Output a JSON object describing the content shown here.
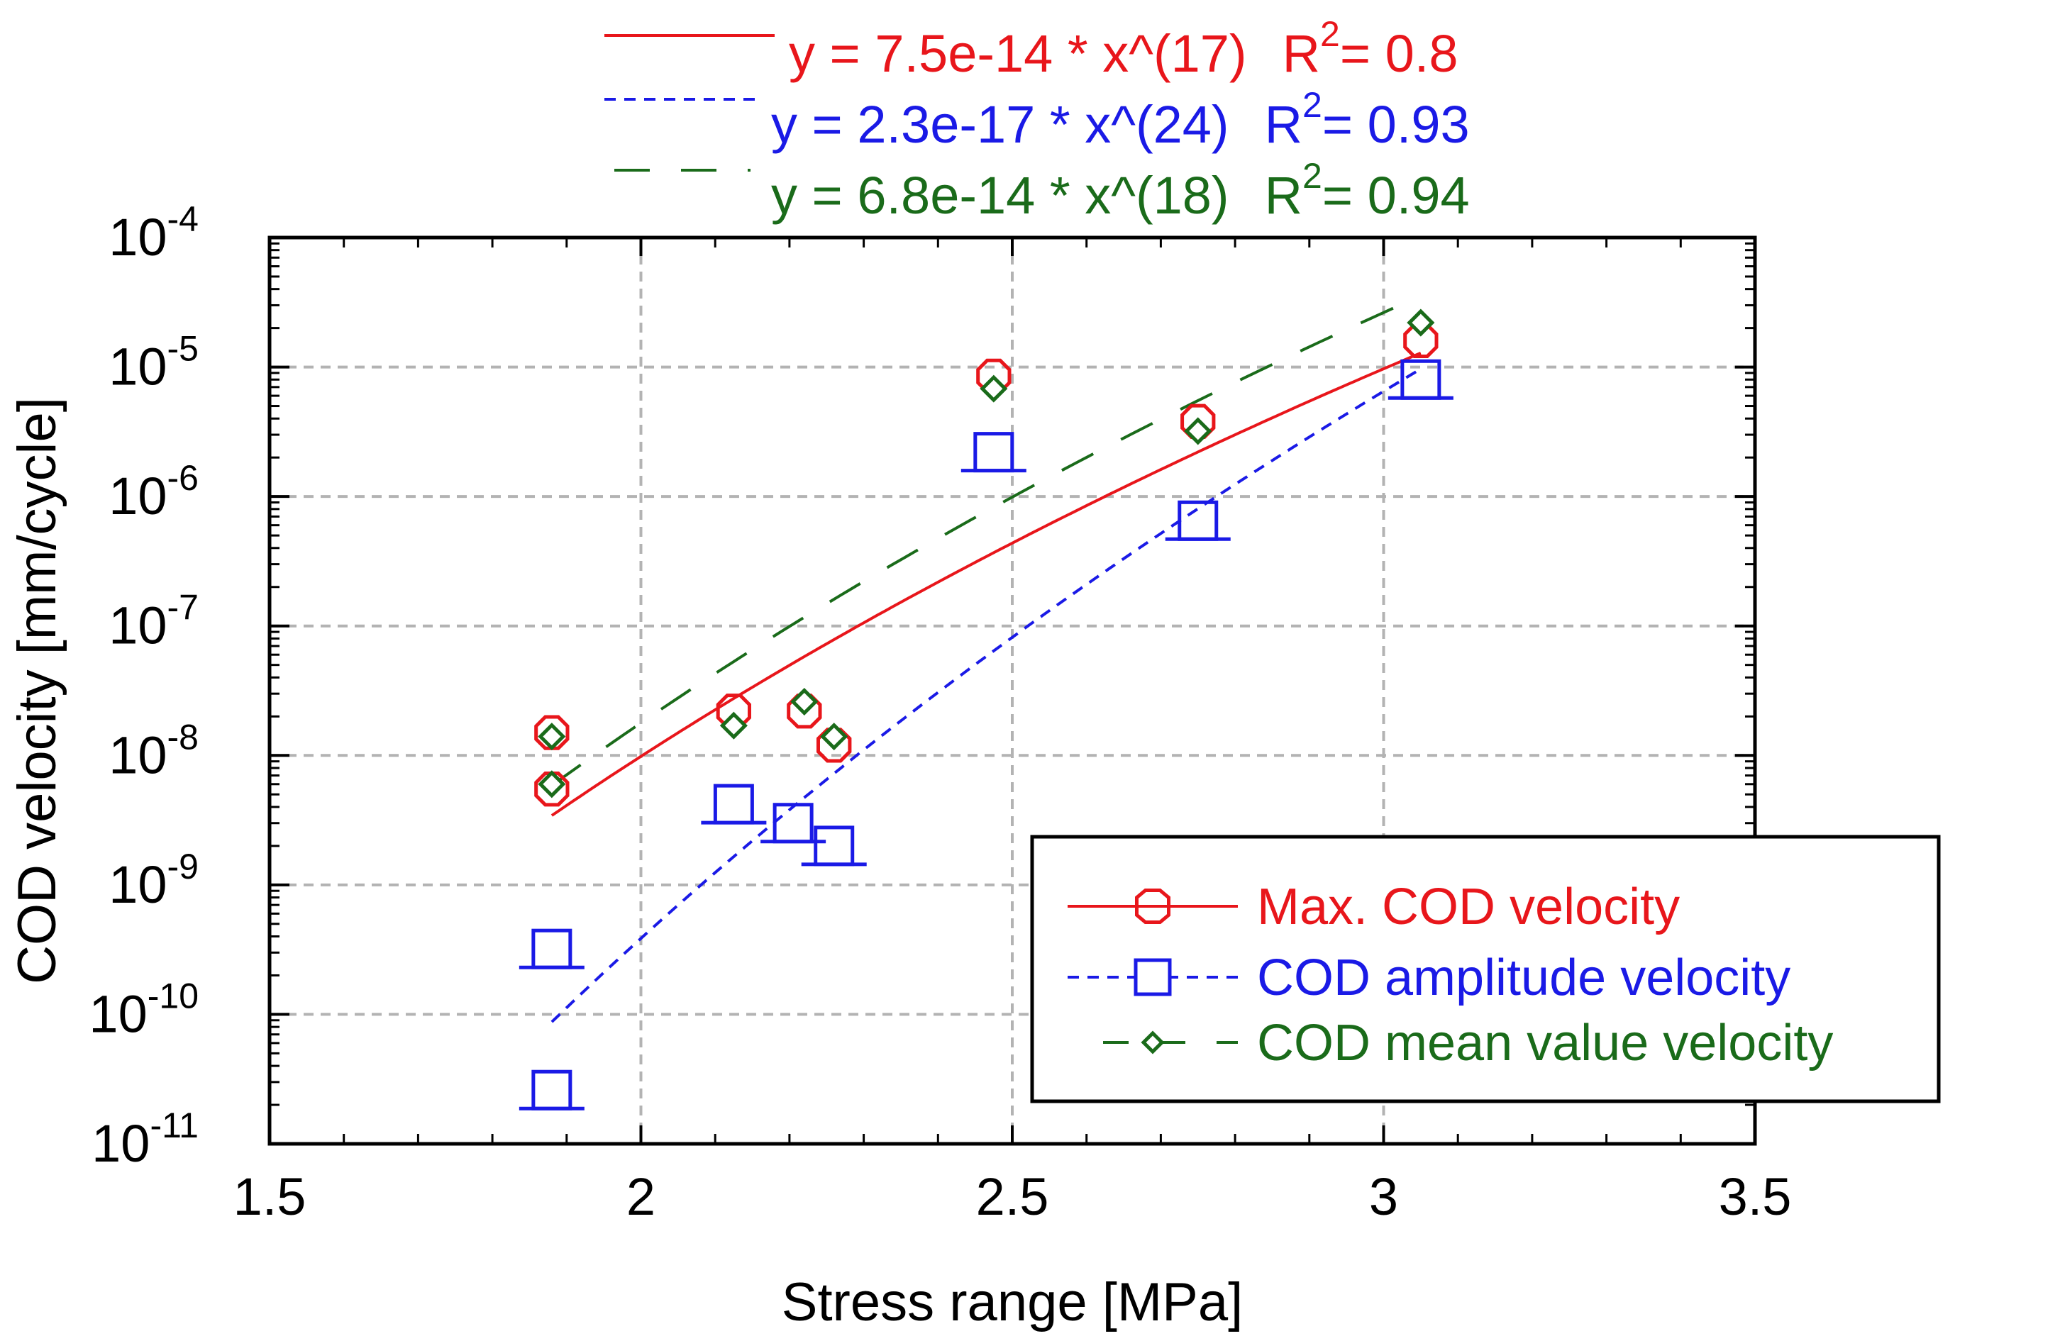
{
  "chart_data": {
    "type": "scatter",
    "xlabel": "Stress range [MPa]",
    "ylabel": "COD velocity [mm/cycle]",
    "xlim": [
      1.5,
      3.5
    ],
    "ylim_log10": [
      -11,
      -4
    ],
    "yscale": "log",
    "grid": true,
    "x_ticks": [
      "1.5",
      "2",
      "2.5",
      "3",
      "3.5"
    ],
    "y_tick_exponents": [
      "-11",
      "-10",
      "-9",
      "-8",
      "-7",
      "-6",
      "-5",
      "-4"
    ],
    "y_tick_base": "10",
    "legend_position": "bottom-right",
    "series": [
      {
        "name": "Max. COD velocity",
        "color": "#e8161b",
        "marker": "octagon",
        "line": "solid",
        "points": [
          [
            1.88,
            1.5e-08
          ],
          [
            1.88,
            5.5e-09
          ],
          [
            2.125,
            2.2e-08
          ],
          [
            2.22,
            2.2e-08
          ],
          [
            2.26,
            1.2e-08
          ],
          [
            2.475,
            8.5e-06
          ],
          [
            2.75,
            3.8e-06
          ],
          [
            3.05,
            1.6e-05
          ]
        ],
        "fit": {
          "a": 7.5e-14,
          "b": 17,
          "label": "y = 7.5e-14 * x^(17)",
          "r2_label": "R",
          "r2_sup": "2",
          "r2_value": "= 0.8"
        }
      },
      {
        "name": "COD amplitude velocity",
        "color": "#1a1ae6",
        "marker": "square",
        "line": "dashed",
        "points": [
          [
            1.88,
            3.2e-10
          ],
          [
            1.88,
            2.6e-11
          ],
          [
            2.125,
            4.2e-09
          ],
          [
            2.205,
            3e-09
          ],
          [
            2.26,
            2e-09
          ],
          [
            2.475,
            2.2e-06
          ],
          [
            2.75,
            6.5e-07
          ],
          [
            3.05,
            8e-06
          ]
        ],
        "fit": {
          "a": 2.3e-17,
          "b": 24,
          "label": "y = 2.3e-17 * x^(24)",
          "r2_label": "R",
          "r2_sup": "2",
          "r2_value": "= 0.93"
        }
      },
      {
        "name": "COD mean value velocity",
        "color": "#1a6b1a",
        "marker": "diamond",
        "line": "long-dash",
        "points": [
          [
            1.88,
            1.4e-08
          ],
          [
            1.88,
            6e-09
          ],
          [
            2.125,
            1.7e-08
          ],
          [
            2.22,
            2.6e-08
          ],
          [
            2.26,
            1.4e-08
          ],
          [
            2.475,
            6.8e-06
          ],
          [
            2.75,
            3.2e-06
          ],
          [
            3.05,
            2.2e-05
          ]
        ],
        "fit": {
          "a": 6.8e-14,
          "b": 18,
          "label": "y = 6.8e-14 * x^(18)",
          "r2_label": "R",
          "r2_sup": "2",
          "r2_value": "= 0.94"
        }
      }
    ]
  }
}
